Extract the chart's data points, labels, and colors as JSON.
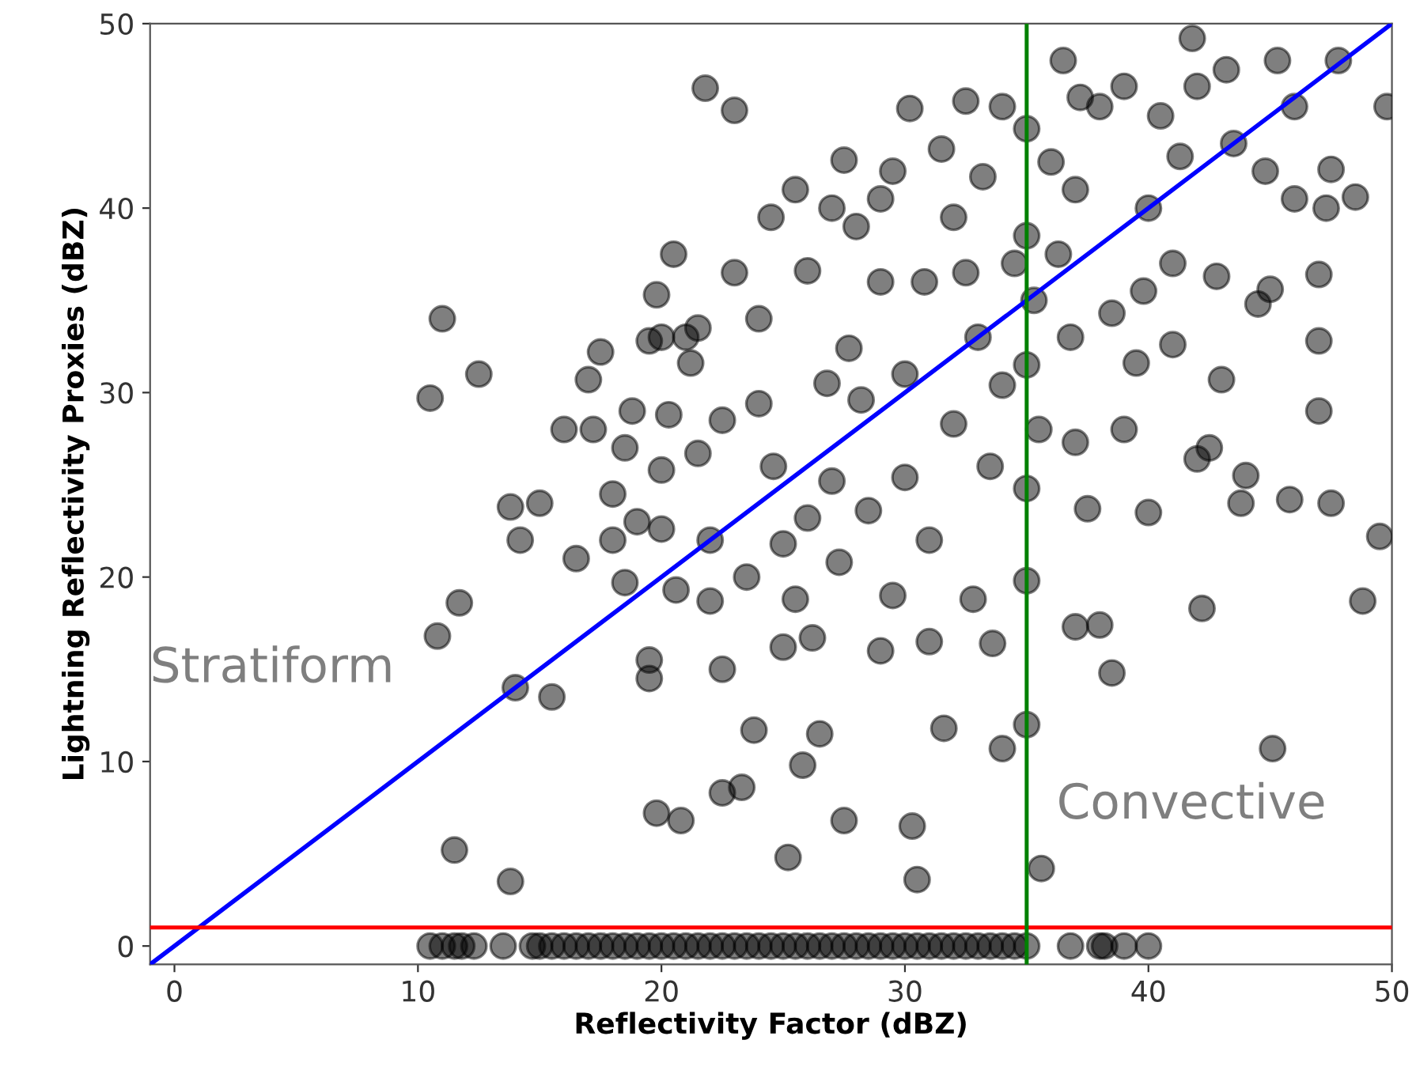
{
  "chart_data": {
    "type": "scatter",
    "xlabel": "Reflectivity Factor (dBZ)",
    "ylabel": "Lightning Reflectivity Proxies (dBZ)",
    "xlim": [
      -1,
      50
    ],
    "ylim": [
      -1,
      50
    ],
    "xticks": [
      0,
      10,
      20,
      30,
      40,
      50
    ],
    "yticks": [
      0,
      10,
      20,
      30,
      40,
      50
    ],
    "grid": false,
    "marker": "circle",
    "annotations": [
      "Stratiform",
      "Convective"
    ],
    "ref_lines": [
      {
        "axis": "y",
        "value": 1,
        "color": "#ff0000",
        "line_style": "solid"
      },
      {
        "axis": "x",
        "value": 35,
        "color": "#008000",
        "line_style": "solid"
      }
    ],
    "series": [
      {
        "color": "#000000",
        "x": [
          10.5,
          11,
          10.8,
          11.7,
          11.5,
          12.5,
          13.8,
          14,
          13.8,
          14.2,
          15,
          15.5,
          16,
          16.5,
          17,
          17.2,
          17.5,
          18,
          18,
          18.5,
          18.5,
          18.8,
          19,
          19.5,
          19.5,
          19.5,
          19.8,
          19.8,
          20,
          20,
          20,
          20.3,
          20.5,
          20.6,
          20.8,
          21,
          21.2,
          21.5,
          21.5,
          21.8,
          22,
          22,
          22.5,
          22.5,
          22.5,
          23,
          23,
          23.3,
          23.5,
          23.8,
          24,
          24,
          24.5,
          24.6,
          25,
          25,
          25.2,
          25.5,
          25.5,
          25.8,
          26,
          26,
          26.2,
          26.5,
          26.8,
          27,
          27,
          27.3,
          27.5,
          27.5,
          27.7,
          28,
          28.2,
          28.5,
          29,
          29,
          29,
          29.5,
          29.5,
          30,
          30,
          30.2,
          30.3,
          30.5,
          30.8,
          31,
          31,
          31.5,
          31.6,
          32,
          32,
          32.5,
          32.5,
          32.8,
          33,
          33.2,
          33.5,
          33.6,
          34,
          34,
          34,
          34.5,
          35,
          35,
          35,
          35,
          35,
          35,
          35.3,
          35.5,
          35.6,
          36,
          36.3,
          36.5,
          36.8,
          37,
          37,
          37,
          37.2,
          37.5,
          38,
          38,
          38.5,
          38.5,
          39,
          39,
          39.5,
          39.8,
          40,
          40,
          40.5,
          41,
          41,
          41.3,
          41.8,
          42,
          42,
          42.2,
          42.5,
          42.8,
          43,
          43.2,
          43.5,
          43.8,
          44,
          44.5,
          44.8,
          45,
          45.1,
          45.3,
          45.8,
          46,
          46,
          47,
          47,
          47,
          47.3,
          47.5,
          47.5,
          48.5,
          48.8,
          49.5,
          49.8,
          47.8,
          10.5,
          11,
          11.5,
          11.8,
          12.3,
          13.5,
          14.7,
          15,
          15.5,
          16,
          16.5,
          17,
          17.5,
          18,
          18.5,
          19,
          19.5,
          20,
          20.5,
          21,
          21.5,
          22,
          22.5,
          23,
          23.5,
          24,
          24.5,
          25,
          25.5,
          26,
          26.5,
          27,
          27.5,
          28,
          28.5,
          29,
          29.5,
          30,
          30.5,
          31,
          31.5,
          32,
          32.5,
          33,
          33.5,
          34,
          34.5,
          35,
          36.8,
          38,
          38.2,
          39,
          40
        ],
        "values": [
          29.7,
          34,
          16.8,
          18.6,
          5.2,
          31,
          23.8,
          14,
          3.5,
          22,
          24,
          13.5,
          28,
          21,
          30.7,
          28,
          32.2,
          24.5,
          22,
          19.7,
          27,
          29,
          23,
          32.8,
          15.5,
          14.5,
          35.3,
          7.2,
          25.8,
          22.6,
          33,
          28.8,
          37.5,
          19.3,
          6.8,
          33,
          31.6,
          26.7,
          33.5,
          46.5,
          22,
          18.7,
          8.3,
          15,
          28.5,
          45.3,
          36.5,
          8.6,
          20,
          11.7,
          34,
          29.4,
          39.5,
          26,
          16.2,
          21.8,
          4.8,
          41,
          18.8,
          9.8,
          36.6,
          23.2,
          16.7,
          11.5,
          30.5,
          40,
          25.2,
          20.8,
          42.6,
          6.8,
          32.4,
          39,
          29.6,
          23.6,
          36,
          40.5,
          16,
          42,
          19,
          31,
          25.4,
          45.4,
          6.5,
          3.6,
          36,
          22,
          16.5,
          43.2,
          11.8,
          39.5,
          28.3,
          36.5,
          45.8,
          18.8,
          33,
          41.7,
          26,
          16.4,
          45.5,
          10.7,
          30.4,
          37,
          44.3,
          38.5,
          31.5,
          24.8,
          19.8,
          12,
          35,
          28,
          4.2,
          42.5,
          37.5,
          48,
          33,
          41,
          27.3,
          17.3,
          46,
          23.7,
          17.4,
          45.5,
          34.3,
          14.8,
          46.6,
          28,
          31.6,
          35.5,
          23.5,
          40,
          45,
          37,
          32.6,
          42.8,
          49.2,
          26.4,
          46.6,
          18.3,
          27,
          36.3,
          30.7,
          47.5,
          43.5,
          24,
          25.5,
          34.8,
          42,
          35.6,
          10.7,
          48,
          24.2,
          45.5,
          40.5,
          36.4,
          32.8,
          29,
          40,
          42.1,
          24,
          40.6,
          18.7,
          22.2,
          45.5,
          48,
          0,
          0,
          0,
          0,
          0,
          0,
          0,
          0,
          0,
          0,
          0,
          0,
          0,
          0,
          0,
          0,
          0,
          0,
          0,
          0,
          0,
          0,
          0,
          0,
          0,
          0,
          0,
          0,
          0,
          0,
          0,
          0,
          0,
          0,
          0,
          0,
          0,
          0,
          0,
          0,
          0,
          0,
          0,
          0,
          0,
          0,
          0,
          0,
          0,
          0,
          0,
          0,
          0
        ]
      },
      {
        "type": "line",
        "color": "#0000ff",
        "x": [
          -1,
          50
        ],
        "values": [
          -1,
          50
        ],
        "line_style": "solid",
        "marker": "none"
      }
    ]
  }
}
